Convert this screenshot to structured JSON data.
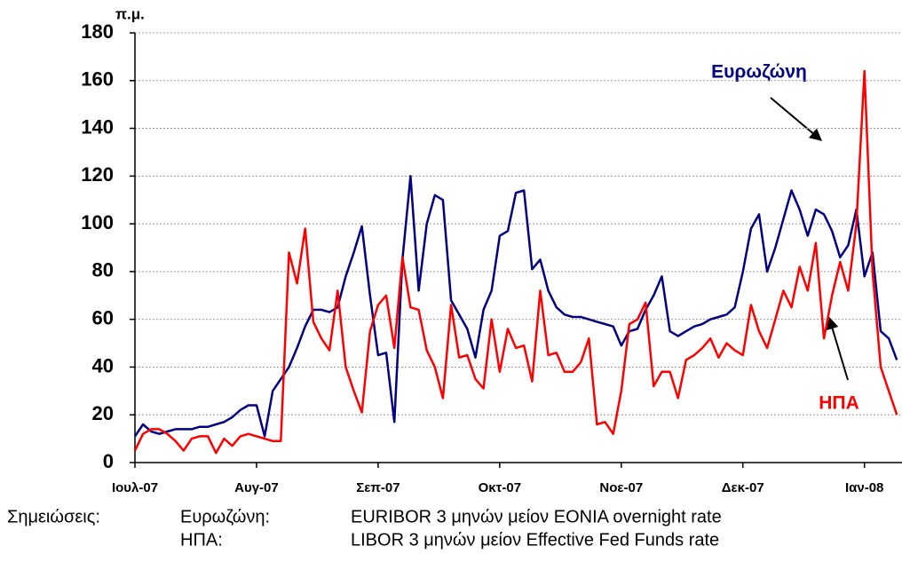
{
  "chart_data": {
    "type": "line",
    "y_label": "π.μ.",
    "categories": [
      "Ιουλ-07",
      null,
      null,
      null,
      null,
      null,
      null,
      null,
      null,
      null,
      null,
      null,
      null,
      null,
      null,
      "Αυγ-07",
      null,
      null,
      null,
      null,
      null,
      null,
      null,
      null,
      null,
      null,
      null,
      null,
      null,
      null,
      "Σεπ-07",
      null,
      null,
      null,
      null,
      null,
      null,
      null,
      null,
      null,
      null,
      null,
      null,
      null,
      null,
      "Οκτ-07",
      null,
      null,
      null,
      null,
      null,
      null,
      null,
      null,
      null,
      null,
      null,
      null,
      null,
      null,
      "Νοε-07",
      null,
      null,
      null,
      null,
      null,
      null,
      null,
      null,
      null,
      null,
      null,
      null,
      null,
      null,
      "Δεκ-07",
      null,
      null,
      null,
      null,
      null,
      null,
      null,
      null,
      null,
      null,
      null,
      null,
      null,
      null,
      "Ιαν-08",
      null,
      null,
      null,
      null
    ],
    "series": [
      {
        "name": "Ευρωζώνη",
        "color": "#000080",
        "values": [
          11,
          16,
          13,
          12,
          13,
          14,
          14,
          14,
          15,
          15,
          16,
          17,
          19,
          22,
          24,
          24,
          11,
          30,
          35,
          40,
          48,
          57,
          64,
          64,
          63,
          65,
          78,
          88,
          99,
          70,
          45,
          46,
          17,
          85,
          120,
          72,
          100,
          112,
          110,
          68,
          62,
          56,
          44,
          64,
          72,
          95,
          97,
          113,
          114,
          81,
          85,
          72,
          65,
          62,
          61,
          61,
          60,
          59,
          58,
          57,
          49,
          55,
          56,
          64,
          70,
          78,
          55,
          53,
          55,
          57,
          58,
          60,
          61,
          62,
          65,
          80,
          98,
          104,
          80,
          90,
          102,
          114,
          106,
          95,
          106,
          104,
          97,
          86,
          91,
          106,
          78,
          88,
          55,
          52,
          43
        ]
      },
      {
        "name": "ΗΠΑ",
        "color": "#ff0000",
        "values": [
          5,
          12,
          14,
          14,
          12,
          9,
          5,
          10,
          11,
          11,
          4,
          10,
          7,
          11,
          12,
          11,
          10,
          9,
          9,
          88,
          75,
          98,
          59,
          52,
          47,
          72,
          40,
          30,
          21,
          55,
          66,
          70,
          48,
          86,
          65,
          64,
          47,
          40,
          27,
          66,
          44,
          45,
          35,
          31,
          60,
          38,
          56,
          48,
          49,
          34,
          72,
          45,
          46,
          38,
          38,
          42,
          52,
          16,
          17,
          12,
          30,
          58,
          60,
          67,
          32,
          38,
          38,
          27,
          43,
          45,
          48,
          52,
          44,
          50,
          47,
          45,
          66,
          55,
          48,
          60,
          72,
          65,
          82,
          72,
          92,
          52,
          70,
          84,
          72,
          100,
          164,
          80,
          40,
          30,
          20
        ]
      }
    ],
    "ylim": [
      0,
      180
    ],
    "yticks": [
      0,
      20,
      40,
      60,
      80,
      100,
      120,
      140,
      160,
      180
    ],
    "grid": true,
    "notes_title": "Σημειώσεις:",
    "notes": [
      {
        "label": "Ευρωζώνη:",
        "text": "EURIBOR 3 μηνών μείον EONIA overnight rate"
      },
      {
        "label": "ΗΠΑ:",
        "text": "LIBOR 3 μηνών μείον Effective Fed Funds rate"
      }
    ]
  }
}
